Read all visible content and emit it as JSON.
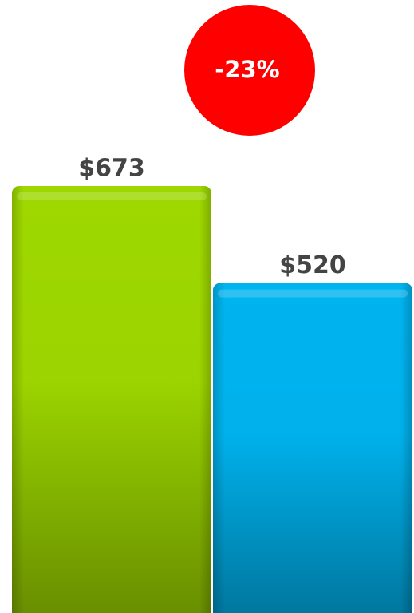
{
  "chart_data": {
    "type": "bar",
    "categories": [
      null,
      null
    ],
    "values": [
      673,
      520
    ],
    "value_labels": [
      "$673",
      "$520"
    ],
    "colors": [
      "#9ed800",
      "#00b4f0"
    ],
    "annotation": "-23%",
    "annotation_color": "#ff0000"
  }
}
